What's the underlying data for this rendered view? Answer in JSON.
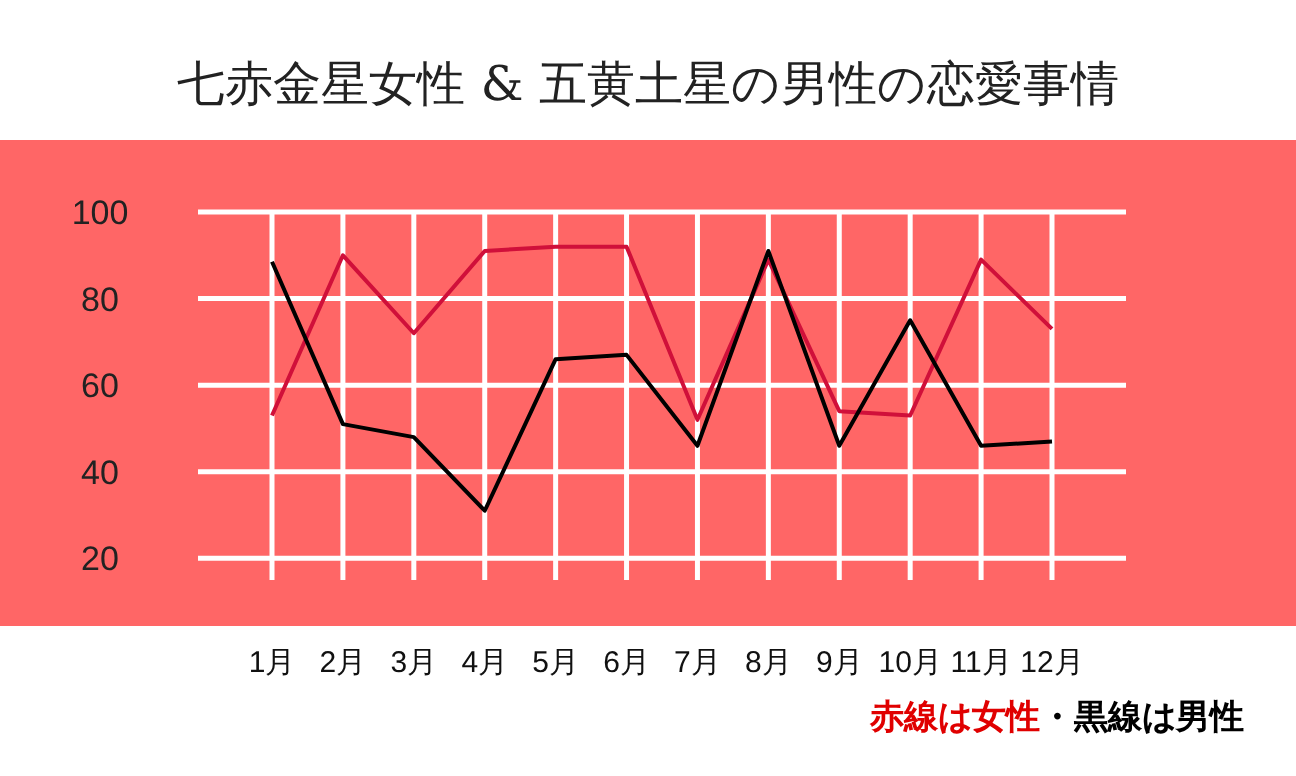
{
  "chart_data": {
    "type": "line",
    "title": "七赤金星女性 & 五黄土星の男性の恋愛事情",
    "categories": [
      "1月",
      "2月",
      "3月",
      "4月",
      "5月",
      "6月",
      "7月",
      "8月",
      "9月",
      "10月",
      "11月",
      "12月"
    ],
    "series": [
      {
        "color": "#d0103a",
        "values": [
          53,
          90,
          72,
          91,
          92,
          92,
          52,
          89,
          54,
          53,
          89,
          73
        ]
      },
      {
        "color": "#000000",
        "values": [
          88.5,
          51,
          48,
          31,
          66,
          67,
          46,
          91,
          46,
          75,
          46,
          47
        ]
      }
    ],
    "ylim": [
      15,
      100
    ],
    "yticks": [
      20,
      40,
      60,
      80,
      100
    ],
    "grid": true,
    "marker": "none",
    "line_style": "solid",
    "annotations": [
      "赤線は女性",
      "・黒線は男性"
    ]
  }
}
